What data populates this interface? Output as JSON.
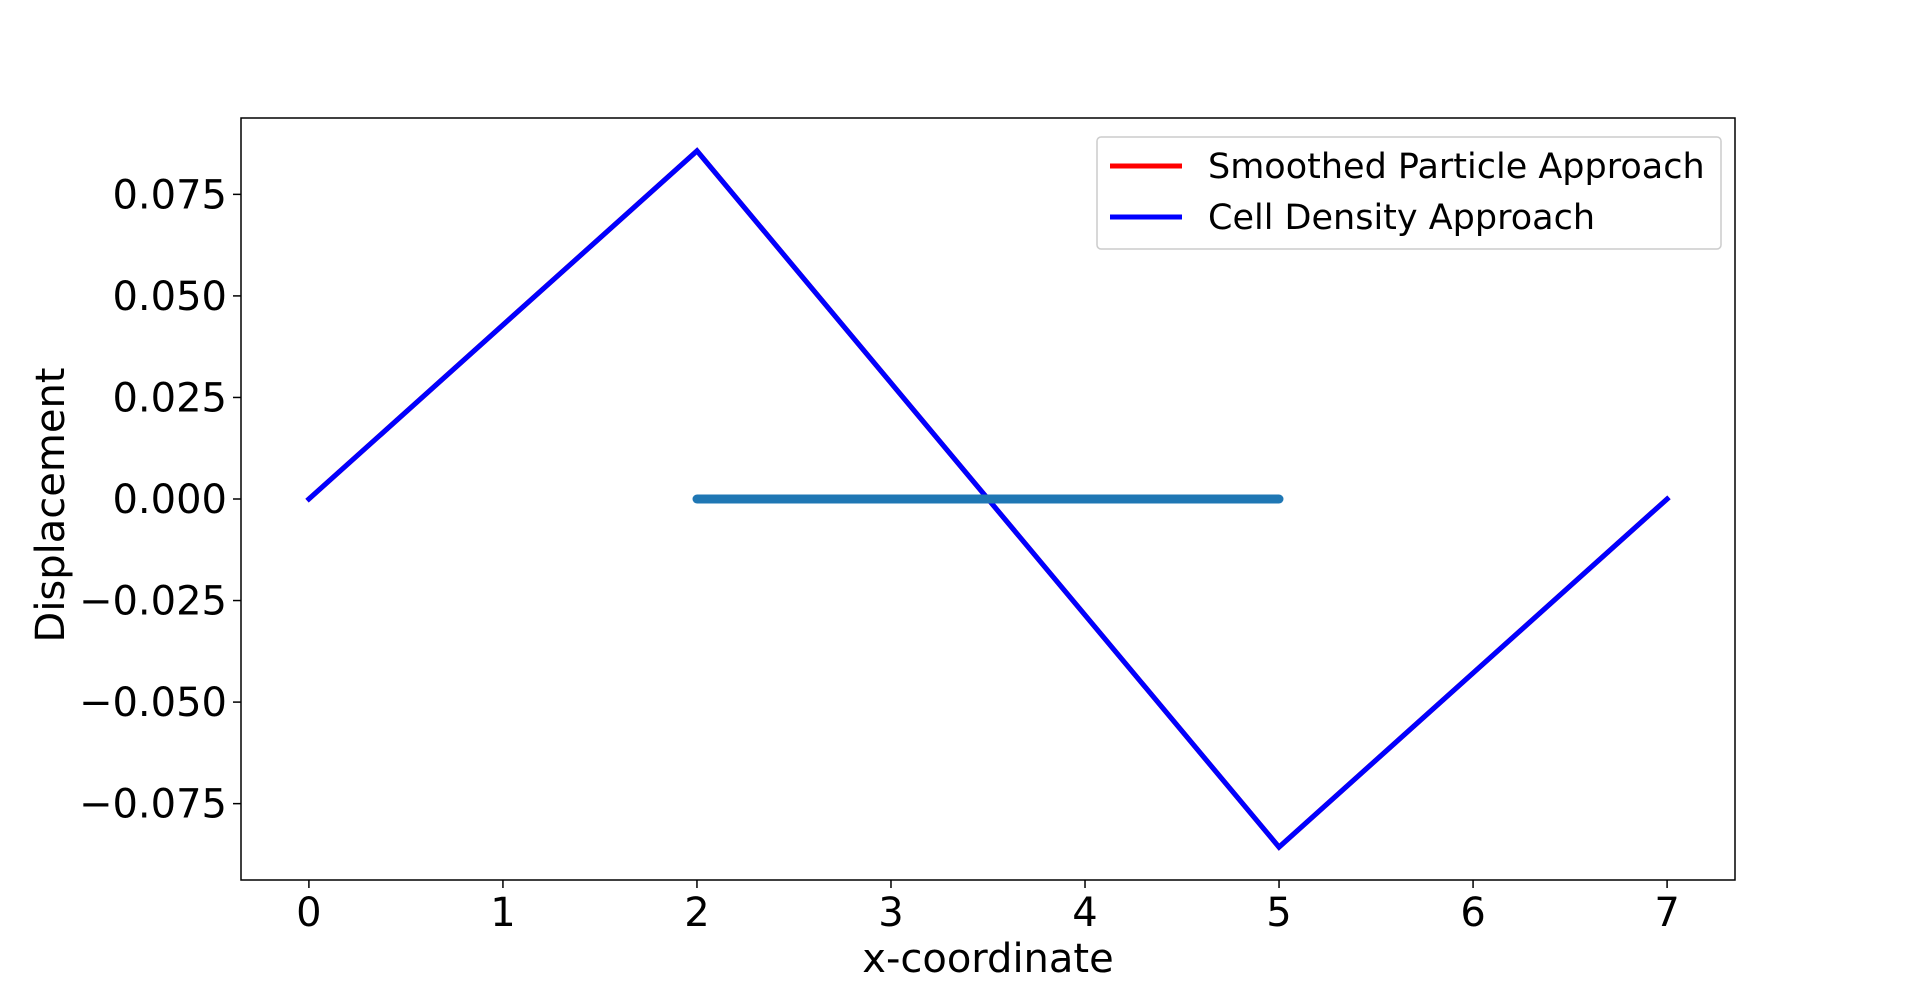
{
  "chart_data": {
    "type": "line",
    "title": "",
    "xlabel": "x-coordinate",
    "ylabel": "Displacement",
    "xlim": [
      -0.35,
      7.35
    ],
    "ylim": [
      -0.0938,
      0.0938
    ],
    "xticks": [
      0,
      1,
      2,
      3,
      4,
      5,
      6,
      7
    ],
    "xtick_labels": [
      "0",
      "1",
      "2",
      "3",
      "4",
      "5",
      "6",
      "7"
    ],
    "yticks": [
      0.075,
      0.05,
      0.025,
      0.0,
      -0.025,
      -0.05,
      -0.075
    ],
    "ytick_labels": [
      "0.075",
      "0.050",
      "0.025",
      "0.000",
      "−0.025",
      "−0.050",
      "−0.075"
    ],
    "grid": false,
    "legend_position": "top-right",
    "series": [
      {
        "name": "Smoothed Particle Approach",
        "color": "#ff0000",
        "in_legend": true,
        "x": [
          0,
          2,
          5,
          7
        ],
        "y": [
          0,
          0.0857,
          -0.0857,
          0
        ]
      },
      {
        "name": "Cell Density Approach",
        "color": "#0000ff",
        "in_legend": true,
        "x": [
          0,
          2,
          5,
          7
        ],
        "y": [
          0,
          0.0857,
          -0.0857,
          0
        ]
      },
      {
        "name": "",
        "color": "#1f77b4",
        "in_legend": false,
        "thick": true,
        "x": [
          2,
          5
        ],
        "y": [
          0,
          0
        ]
      }
    ]
  }
}
